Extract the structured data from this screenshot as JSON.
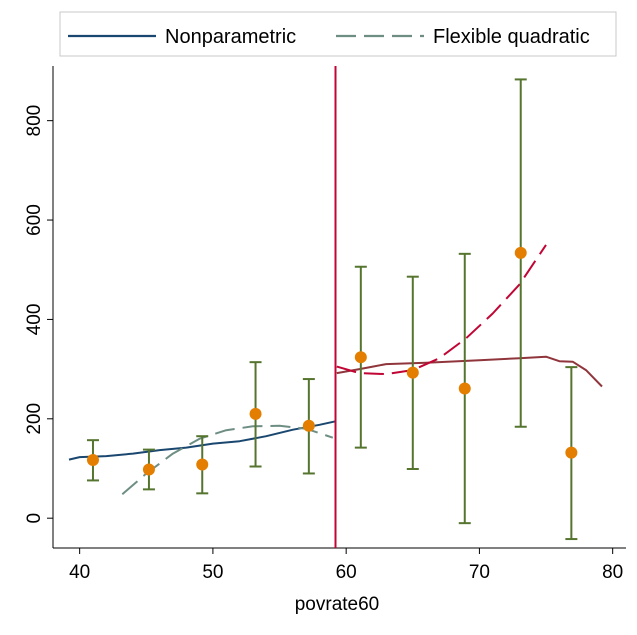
{
  "chart_data": {
    "type": "line",
    "title": "",
    "xlabel": "povrate60",
    "ylabel": "",
    "xlim": [
      38,
      81
    ],
    "ylim": [
      -60,
      910
    ],
    "xticks": [
      40,
      50,
      60,
      70,
      80
    ],
    "yticks": [
      0,
      200,
      400,
      600,
      800
    ],
    "cutoff": 59.2,
    "grid": false,
    "legend_position": "top",
    "colors": {
      "nonparametric_left": "#1a476f",
      "quadratic_left": "#6e8e84",
      "nonparametric_right": "#90353b",
      "quadratic_right": "#c10534",
      "cutoff_line": "#c10534",
      "error_bars": "#55752f",
      "points": "#e37e00"
    },
    "legend": [
      {
        "label": "Nonparametric",
        "style": "solid",
        "color": "#1a476f"
      },
      {
        "label": "Flexible quadratic",
        "style": "dashed",
        "color": "#6e8e84"
      }
    ],
    "series": [
      {
        "name": "Nonparametric",
        "side": "left",
        "style": "solid",
        "color": "#1a476f",
        "points": [
          [
            39.2,
            118
          ],
          [
            40,
            123
          ],
          [
            42,
            125
          ],
          [
            44,
            130
          ],
          [
            46,
            137
          ],
          [
            48,
            142
          ],
          [
            50,
            150
          ],
          [
            52,
            155
          ],
          [
            54,
            165
          ],
          [
            56,
            178
          ],
          [
            58,
            188
          ],
          [
            59.2,
            195
          ]
        ]
      },
      {
        "name": "Flexible quadratic",
        "side": "left",
        "style": "dashed",
        "color": "#6e8e84",
        "points": [
          [
            43.2,
            48
          ],
          [
            45,
            90
          ],
          [
            47,
            130
          ],
          [
            49,
            160
          ],
          [
            51,
            177
          ],
          [
            53,
            185
          ],
          [
            55,
            186
          ],
          [
            57,
            180
          ],
          [
            59,
            162
          ]
        ]
      },
      {
        "name": "Nonparametric",
        "side": "right",
        "style": "solid",
        "color": "#90353b",
        "points": [
          [
            59.3,
            292
          ],
          [
            61,
            300
          ],
          [
            62,
            305
          ],
          [
            63,
            310
          ],
          [
            66,
            313
          ],
          [
            70,
            318
          ],
          [
            73,
            322
          ],
          [
            75,
            325
          ],
          [
            76,
            316
          ],
          [
            77,
            315
          ],
          [
            78,
            298
          ],
          [
            79.2,
            265
          ]
        ]
      },
      {
        "name": "Flexible quadratic",
        "side": "right",
        "style": "dashed",
        "color": "#c10534",
        "points": [
          [
            59.3,
            305
          ],
          [
            61,
            292
          ],
          [
            63,
            290
          ],
          [
            65,
            298
          ],
          [
            67,
            322
          ],
          [
            69,
            362
          ],
          [
            71,
            412
          ],
          [
            73,
            470
          ],
          [
            75,
            550
          ]
        ]
      }
    ],
    "binned_means": [
      {
        "x": 41.0,
        "y": 117,
        "lo": 76,
        "hi": 157
      },
      {
        "x": 45.2,
        "y": 98,
        "lo": 58,
        "hi": 138
      },
      {
        "x": 49.2,
        "y": 108,
        "lo": 50,
        "hi": 165
      },
      {
        "x": 53.2,
        "y": 210,
        "lo": 104,
        "hi": 314
      },
      {
        "x": 57.2,
        "y": 186,
        "lo": 90,
        "hi": 280
      },
      {
        "x": 61.1,
        "y": 324,
        "lo": 142,
        "hi": 506
      },
      {
        "x": 65.0,
        "y": 293,
        "lo": 99,
        "hi": 486
      },
      {
        "x": 68.9,
        "y": 261,
        "lo": -10,
        "hi": 532
      },
      {
        "x": 73.1,
        "y": 534,
        "lo": 184,
        "hi": 883
      },
      {
        "x": 76.9,
        "y": 132,
        "lo": -42,
        "hi": 304
      }
    ]
  }
}
